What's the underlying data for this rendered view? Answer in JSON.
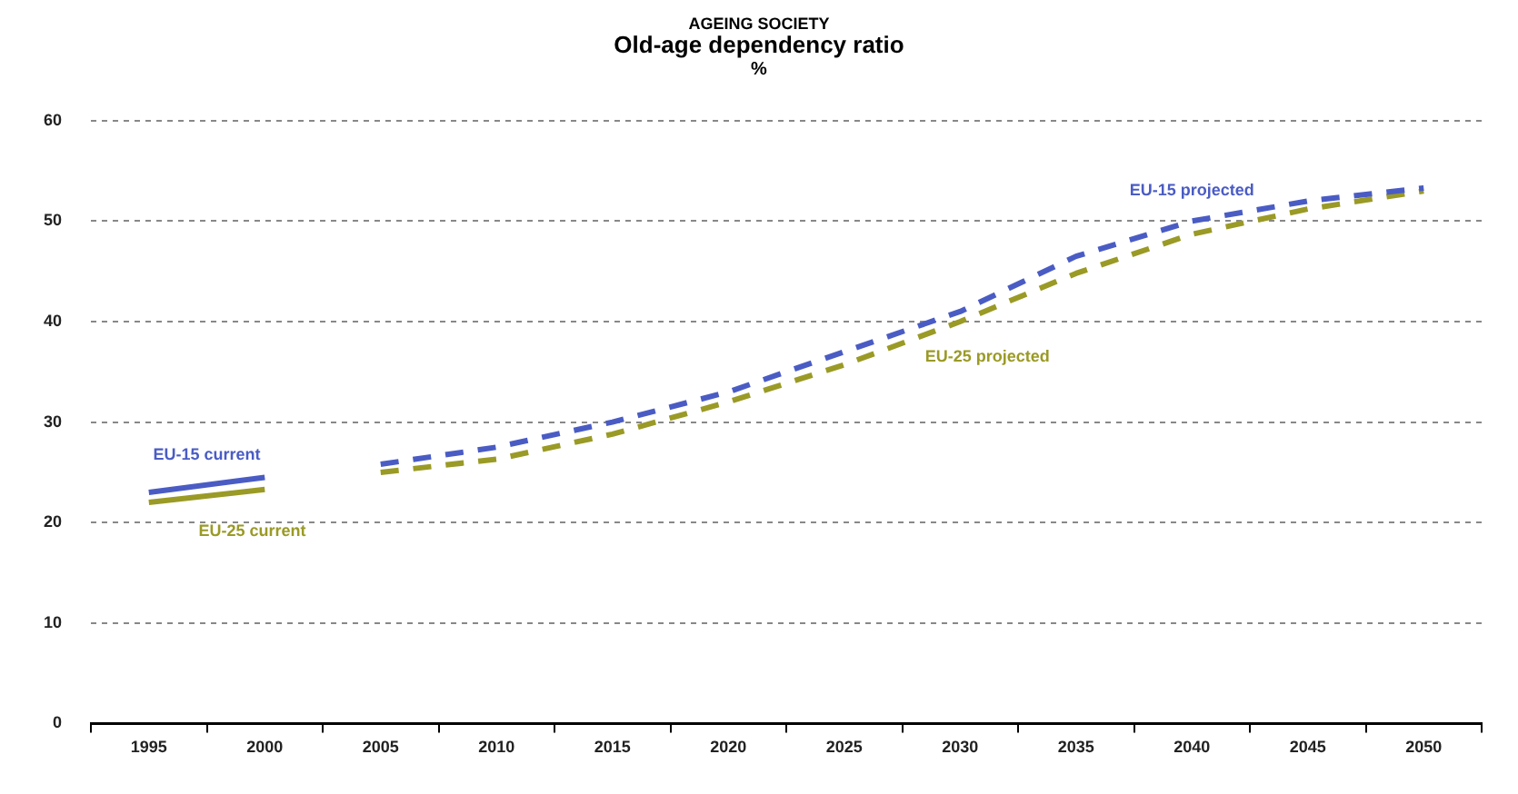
{
  "chart_data": {
    "type": "line",
    "title": "AGEING SOCIETY",
    "subtitle": "Old-age dependency ratio",
    "ylabel": "%",
    "categories": [
      "1995",
      "2000",
      "2005",
      "2010",
      "2015",
      "2020",
      "2025",
      "2030",
      "2035",
      "2040",
      "2045",
      "2050"
    ],
    "series": [
      {
        "name": "EU-15 current",
        "color": "#4a5cc4",
        "line_style": "solid",
        "values": [
          23,
          24.5,
          null,
          null,
          null,
          null,
          null,
          null,
          null,
          null,
          null,
          null
        ]
      },
      {
        "name": "EU-25 current",
        "color": "#9a9a26",
        "line_style": "solid",
        "values": [
          22,
          23.3,
          null,
          null,
          null,
          null,
          null,
          null,
          null,
          null,
          null,
          null
        ]
      },
      {
        "name": "EU-15 projected",
        "color": "#4a5cc4",
        "line_style": "dashed",
        "values": [
          null,
          null,
          25.8,
          27.5,
          30,
          33,
          37,
          41,
          46.5,
          50,
          52,
          53.3
        ]
      },
      {
        "name": "EU-25 projected",
        "color": "#9a9a26",
        "line_style": "dashed",
        "values": [
          null,
          null,
          25,
          26.3,
          28.8,
          32,
          35.7,
          40,
          44.8,
          48.7,
          51.2,
          53
        ]
      }
    ],
    "ylim": [
      0,
      60
    ],
    "yticks": [
      0,
      10,
      20,
      30,
      40,
      50,
      60
    ],
    "grid": "y",
    "legend": false,
    "marker": "none"
  }
}
